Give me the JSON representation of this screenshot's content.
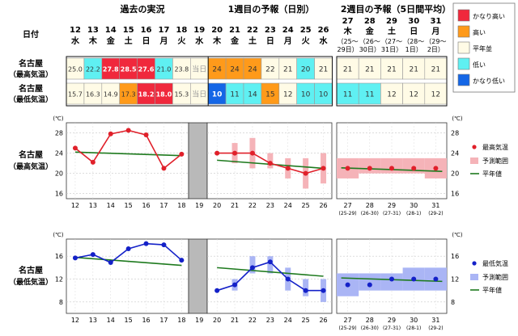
{
  "header": {
    "section_past": "過去の実況",
    "section_week1": "1週目の予報（日別）",
    "section_week2": "2週目の予報（5日間平均）",
    "date_label": "日付"
  },
  "days": [
    {
      "d": "12",
      "w": "水"
    },
    {
      "d": "13",
      "w": "木"
    },
    {
      "d": "14",
      "w": "金"
    },
    {
      "d": "15",
      "w": "土"
    },
    {
      "d": "16",
      "w": "日"
    },
    {
      "d": "17",
      "w": "月"
    },
    {
      "d": "18",
      "w": "火"
    },
    {
      "d": "19",
      "w": "水"
    },
    {
      "d": "20",
      "w": "木"
    },
    {
      "d": "21",
      "w": "金"
    },
    {
      "d": "22",
      "w": "土"
    },
    {
      "d": "23",
      "w": "日"
    },
    {
      "d": "24",
      "w": "月"
    },
    {
      "d": "25",
      "w": "火"
    },
    {
      "d": "26",
      "w": "水"
    }
  ],
  "week2": [
    {
      "d": "27",
      "w": "木",
      "r1": "（25〜",
      "r2": "29日）"
    },
    {
      "d": "28",
      "w": "金",
      "r1": "（26〜",
      "r2": "30日）"
    },
    {
      "d": "29",
      "w": "土",
      "r1": "（27〜",
      "r2": "31日）"
    },
    {
      "d": "30",
      "w": "日",
      "r1": "（28〜",
      "r2": "1日）"
    },
    {
      "d": "31",
      "w": "月",
      "r1": "（29〜",
      "r2": "2日）"
    }
  ],
  "rows": [
    {
      "label1": "名古屋",
      "label2": "（最高気温）",
      "cells": [
        {
          "v": "25.0",
          "c": "normal"
        },
        {
          "v": "22.2",
          "c": "low"
        },
        {
          "v": "27.8",
          "c": "vhigh"
        },
        {
          "v": "28.5",
          "c": "vhigh"
        },
        {
          "v": "27.6",
          "c": "vhigh"
        },
        {
          "v": "21.0",
          "c": "low"
        },
        {
          "v": "23.8",
          "c": "normal"
        },
        {
          "v": "当日",
          "c": "today"
        },
        {
          "v": "24",
          "c": "high"
        },
        {
          "v": "24",
          "c": "high"
        },
        {
          "v": "24",
          "c": "high"
        },
        {
          "v": "22",
          "c": "normal"
        },
        {
          "v": "21",
          "c": "normal"
        },
        {
          "v": "20",
          "c": "low"
        },
        {
          "v": "21",
          "c": "normal"
        }
      ],
      "week2": [
        {
          "v": "21",
          "c": "normal"
        },
        {
          "v": "21",
          "c": "normal"
        },
        {
          "v": "21",
          "c": "normal"
        },
        {
          "v": "21",
          "c": "normal"
        },
        {
          "v": "21",
          "c": "normal"
        }
      ]
    },
    {
      "label1": "名古屋",
      "label2": "（最低気温）",
      "cells": [
        {
          "v": "15.7",
          "c": "normal"
        },
        {
          "v": "16.3",
          "c": "normal"
        },
        {
          "v": "14.9",
          "c": "normal"
        },
        {
          "v": "17.3",
          "c": "high"
        },
        {
          "v": "18.2",
          "c": "vhigh"
        },
        {
          "v": "18.0",
          "c": "vhigh"
        },
        {
          "v": "15.3",
          "c": "normal"
        },
        {
          "v": "当日",
          "c": "today"
        },
        {
          "v": "10",
          "c": "vlow"
        },
        {
          "v": "11",
          "c": "low"
        },
        {
          "v": "14",
          "c": "low"
        },
        {
          "v": "15",
          "c": "high"
        },
        {
          "v": "12",
          "c": "normal"
        },
        {
          "v": "10",
          "c": "low"
        },
        {
          "v": "10",
          "c": "low"
        }
      ],
      "week2": [
        {
          "v": "11",
          "c": "low"
        },
        {
          "v": "11",
          "c": "low"
        },
        {
          "v": "12",
          "c": "normal"
        },
        {
          "v": "12",
          "c": "normal"
        },
        {
          "v": "12",
          "c": "normal"
        }
      ]
    }
  ],
  "legend_table": [
    {
      "key": "vhigh",
      "label": "かなり高い"
    },
    {
      "key": "high",
      "label": "高い"
    },
    {
      "key": "normal",
      "label": "平年並"
    },
    {
      "key": "low",
      "label": "低い"
    },
    {
      "key": "vlow",
      "label": "かなり低い"
    }
  ],
  "colors": {
    "vhigh": "#f0283c",
    "high": "#ff9a1a",
    "normal": "#fffbe6",
    "low": "#5ff0f2",
    "vlow": "#1466e6",
    "today": "#fffbe6",
    "max_line": "#e0202a",
    "max_range": "#f5b3b8",
    "min_line": "#1421c8",
    "min_range": "#aab5f5",
    "normal_line": "#1e7a1e",
    "gap": "#b9b9b9"
  },
  "chart_data": [
    {
      "type": "line",
      "label1": "名古屋",
      "label2": "（最高気温）",
      "unit": "(℃)",
      "ylim": [
        15,
        30
      ],
      "yticks": [
        16,
        20,
        24,
        28
      ],
      "x": [
        "12",
        "13",
        "14",
        "15",
        "16",
        "17",
        "18",
        "19",
        "20",
        "21",
        "22",
        "23",
        "24",
        "25",
        "26"
      ],
      "week2_x": [
        "27",
        "28",
        "29",
        "30",
        "31"
      ],
      "week2_sub": [
        "(25-29)",
        "(26-30)",
        "(27-31)",
        "(28-1)",
        "(29-2)"
      ],
      "observed": [
        25.0,
        22.2,
        27.8,
        28.5,
        27.6,
        21.0,
        23.8
      ],
      "forecast": [
        24,
        24,
        24,
        22,
        21,
        20,
        21
      ],
      "forecast_range": [
        [
          null,
          null
        ],
        [
          22,
          26
        ],
        [
          21,
          27
        ],
        [
          21,
          24
        ],
        [
          19,
          23
        ],
        [
          17,
          23
        ],
        [
          18,
          24
        ]
      ],
      "week2": [
        21,
        21,
        21,
        21,
        21
      ],
      "week2_range": [
        [
          19,
          23
        ],
        [
          20,
          23
        ],
        [
          20,
          23
        ],
        [
          20,
          23
        ],
        [
          19,
          23
        ]
      ],
      "normal_past": [
        24.2,
        23.5
      ],
      "normal_week1": [
        22.6,
        21.0
      ],
      "normal_week2": [
        21.1,
        20.4
      ],
      "legend": [
        "最高気温",
        "予測範囲",
        "平年値"
      ]
    },
    {
      "type": "line",
      "label1": "名古屋",
      "label2": "（最低気温）",
      "unit": "(℃)",
      "ylim": [
        6,
        19
      ],
      "yticks": [
        8,
        12,
        16
      ],
      "x": [
        "12",
        "13",
        "14",
        "15",
        "16",
        "17",
        "18",
        "19",
        "20",
        "21",
        "22",
        "23",
        "24",
        "25",
        "26"
      ],
      "week2_x": [
        "27",
        "28",
        "29",
        "30",
        "31"
      ],
      "week2_sub": [
        "(25-29)",
        "(26-30)",
        "(27-31)",
        "(28-1)",
        "(29-2)"
      ],
      "observed": [
        15.7,
        16.3,
        14.9,
        17.3,
        18.2,
        18.0,
        15.3
      ],
      "forecast": [
        10,
        11,
        14,
        15,
        12,
        10,
        10
      ],
      "forecast_range": [
        [
          null,
          null
        ],
        [
          10,
          12
        ],
        [
          13,
          16
        ],
        [
          13,
          16
        ],
        [
          10,
          14
        ],
        [
          9,
          12
        ],
        [
          8,
          12
        ]
      ],
      "week2": [
        11,
        11,
        12,
        12,
        12
      ],
      "week2_range": [
        [
          9,
          13
        ],
        [
          10,
          13
        ],
        [
          10,
          13
        ],
        [
          10,
          14
        ],
        [
          10,
          14
        ]
      ],
      "normal_past": [
        15.8,
        14.4
      ],
      "normal_week1": [
        14.0,
        12.5
      ],
      "normal_week2": [
        12.2,
        11.6
      ],
      "legend": [
        "最低気温",
        "予測範囲",
        "平年値"
      ]
    }
  ]
}
